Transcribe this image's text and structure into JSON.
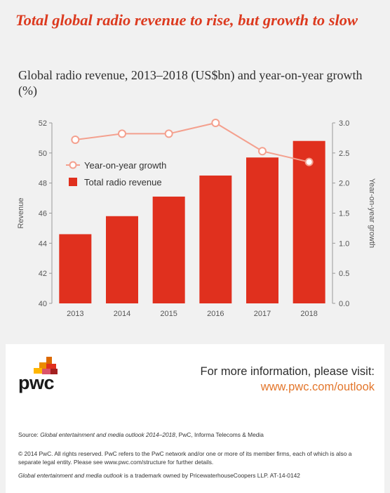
{
  "header": {
    "title": "Total global radio revenue to rise, but growth to slow",
    "subtitle": "Global radio revenue, 2013–2018 (US$bn) and year-on-year growth (%)"
  },
  "chart_data": {
    "type": "bar",
    "categories": [
      "2013",
      "2014",
      "2015",
      "2016",
      "2017",
      "2018"
    ],
    "series": [
      {
        "name": "Total radio revenue",
        "type": "bar",
        "axis": "left",
        "values": [
          44.6,
          45.8,
          47.1,
          48.5,
          49.7,
          50.8
        ]
      },
      {
        "name": "Year-on-year growth",
        "type": "line",
        "axis": "right",
        "values": [
          2.72,
          2.82,
          2.82,
          3.0,
          2.53,
          2.35
        ]
      }
    ],
    "ylabel": "Revenue",
    "y2label": "Year-on-year growth",
    "ylim": [
      40,
      52
    ],
    "y_ticks": [
      "40",
      "42",
      "44",
      "46",
      "48",
      "50",
      "52"
    ],
    "y2lim": [
      0,
      3.0
    ],
    "y2_ticks": [
      "0.0",
      "0.5",
      "1.0",
      "1.5",
      "2.0",
      "2.5",
      "3.0"
    ],
    "legend_position": "top-left",
    "grid": false,
    "colors": {
      "bar": "#e0301e",
      "line": "#f4a08e",
      "marker_fill": "#ffffff"
    }
  },
  "footer": {
    "logo_text": "pwc",
    "info_label": "For more information, please visit:",
    "info_link": "www.pwc.com/outlook",
    "source_prefix": "Source: ",
    "source_italic": "Global entertainment and media outlook 2014–2018",
    "source_rest": ", PwC, Informa Telecoms & Media",
    "copyright": "© 2014 PwC. All rights reserved. PwC refers to the PwC network and/or one or more of its member firms, each of which is also a separate legal entity. Please see www.pwc.com/structure for further details.",
    "trademark_italic": "Global entertainment and media outlook",
    "trademark_rest": " is a trademark owned by PricewaterhouseCoopers LLP. AT-14-0142"
  }
}
